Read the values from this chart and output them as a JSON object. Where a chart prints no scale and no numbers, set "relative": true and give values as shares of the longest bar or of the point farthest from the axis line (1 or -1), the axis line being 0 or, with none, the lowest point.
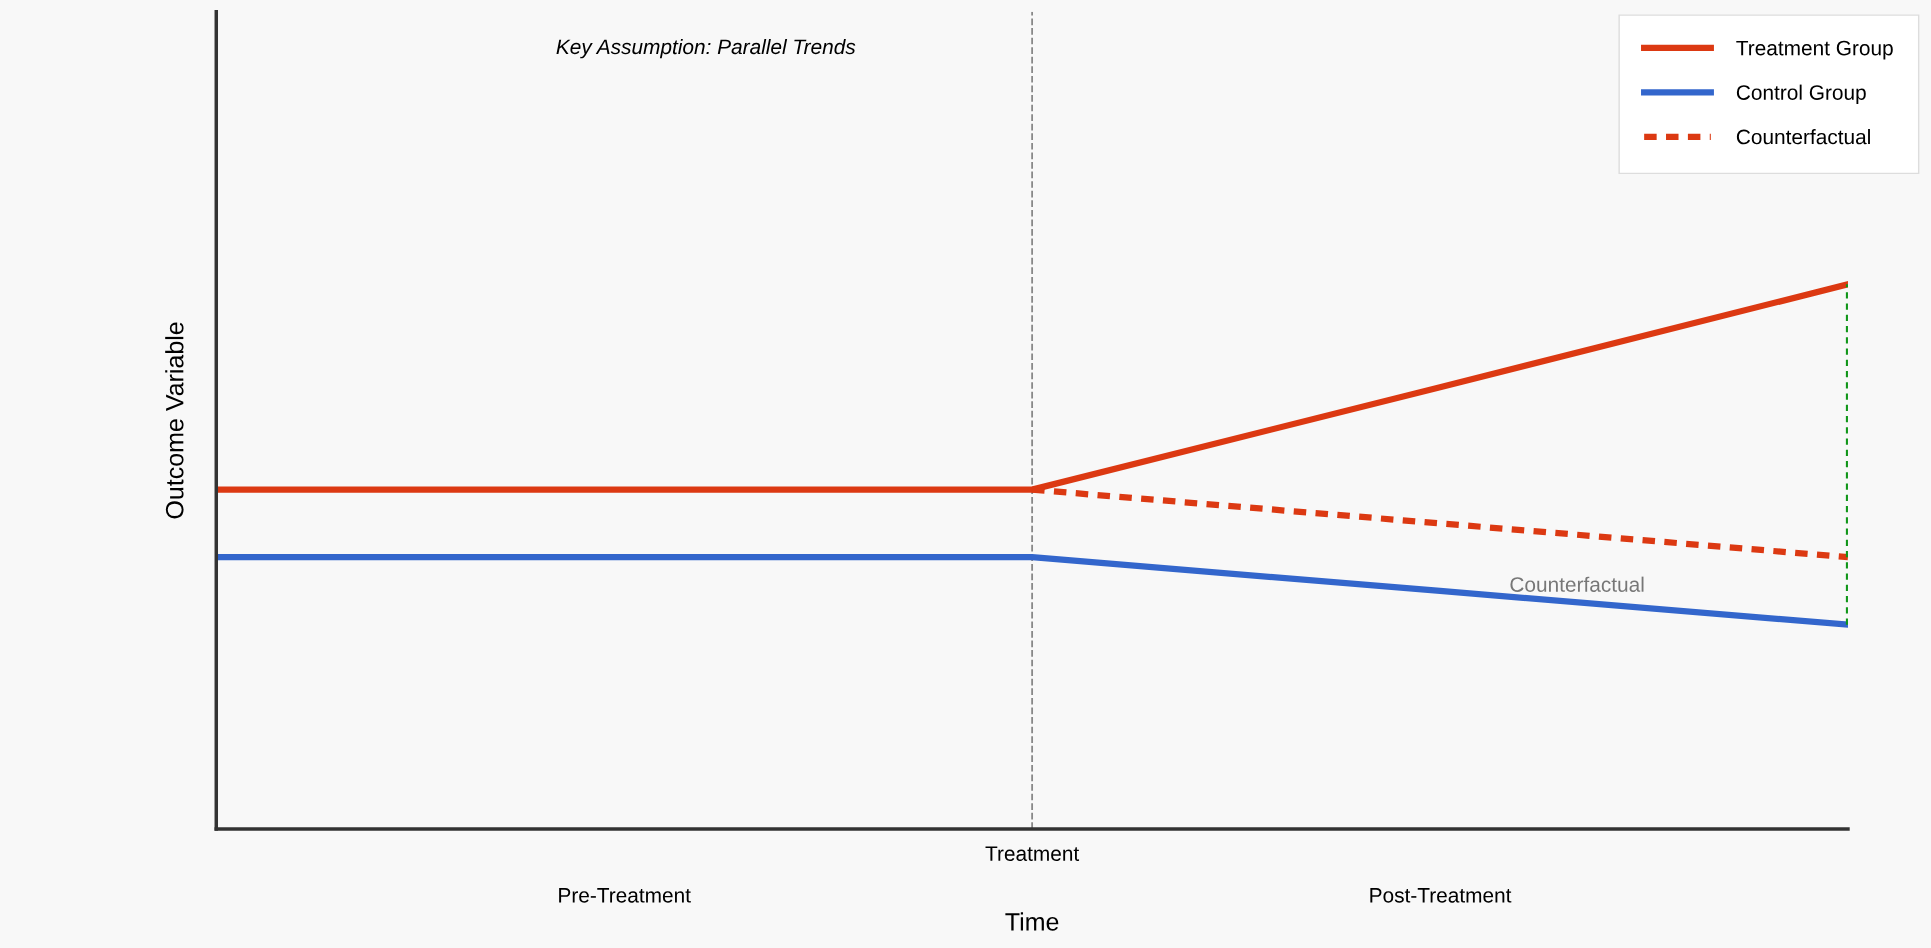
{
  "chart_data": {
    "type": "line",
    "relative": true,
    "xlabel": "Time",
    "ylabel": "Outcome Variable",
    "categories": [
      null,
      "Pre-Treatment",
      "Treatment",
      "Post-Treatment",
      null
    ],
    "series": [
      {
        "name": "Treatment Group",
        "color": "#dc3912",
        "values": [
          0.623,
          0.623,
          0.623,
          0.811,
          1.0
        ],
        "line_style": "solid"
      },
      {
        "name": "Control Group",
        "color": "#3366cc",
        "values": [
          0.499,
          0.499,
          0.499,
          0.437,
          0.375
        ],
        "line_style": "solid"
      },
      {
        "name": "Counterfactual",
        "color": "#dc3912",
        "values": [
          null,
          null,
          0.623,
          0.561,
          0.499
        ],
        "line_style": "dashed"
      }
    ],
    "ref_lines": [
      {
        "axis": "x",
        "value": "Treatment",
        "color": "#888888",
        "line_style": "dashed"
      }
    ],
    "annotations": [
      "Key Assumption: Parallel Trends",
      "Counterfactual"
    ],
    "legend": "top right",
    "grid": false
  }
}
